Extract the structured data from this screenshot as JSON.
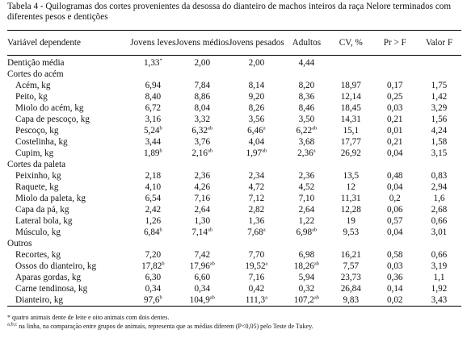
{
  "caption": "Tabela 4 - Quilogramas dos cortes provenientes da desossa do dianteiro de machos inteiros da raça Nelore terminados com diferentes pesos e dentições",
  "headers": [
    "Variável dependente",
    "Jovens leves",
    "Jovens médios",
    "Jovens pesados",
    "Adultos",
    "CV, %",
    "Pr > F",
    "Valor F"
  ],
  "rows": [
    {
      "label": "Dentição média",
      "indent": false,
      "cells": [
        [
          "1,33",
          "*"
        ],
        [
          "2,00",
          ""
        ],
        [
          "2,00",
          ""
        ],
        [
          "4,44",
          ""
        ],
        [
          "",
          ""
        ],
        [
          "",
          ""
        ],
        [
          "",
          ""
        ]
      ]
    },
    {
      "label": "Cortes do acém",
      "indent": false,
      "cells": []
    },
    {
      "label": "Acém, kg",
      "indent": true,
      "cells": [
        [
          "6,94",
          ""
        ],
        [
          "7,84",
          ""
        ],
        [
          "8,14",
          ""
        ],
        [
          "8,20",
          ""
        ],
        [
          "18,97",
          ""
        ],
        [
          "0,17",
          ""
        ],
        [
          "1,75",
          ""
        ]
      ]
    },
    {
      "label": "Peito, kg",
      "indent": true,
      "cells": [
        [
          "8,40",
          ""
        ],
        [
          "8,86",
          ""
        ],
        [
          "9,20",
          ""
        ],
        [
          "8,36",
          ""
        ],
        [
          "12,14",
          ""
        ],
        [
          "0,25",
          ""
        ],
        [
          "1,42",
          ""
        ]
      ]
    },
    {
      "label": "Miolo do acém, kg",
      "indent": true,
      "cells": [
        [
          "6,72",
          ""
        ],
        [
          "8,04",
          ""
        ],
        [
          "8,26",
          ""
        ],
        [
          "8,46",
          ""
        ],
        [
          "18,45",
          ""
        ],
        [
          "0,03",
          ""
        ],
        [
          "3,29",
          ""
        ]
      ]
    },
    {
      "label": "Capa de pescoço, kg",
      "indent": true,
      "cells": [
        [
          "3,16",
          ""
        ],
        [
          "3,32",
          ""
        ],
        [
          "3,56",
          ""
        ],
        [
          "3,50",
          ""
        ],
        [
          "14,31",
          ""
        ],
        [
          "0,21",
          ""
        ],
        [
          "1,56",
          ""
        ]
      ]
    },
    {
      "label": "Pescoço, kg",
      "indent": true,
      "cells": [
        [
          "5,24",
          "b"
        ],
        [
          "6,32",
          "ab"
        ],
        [
          "6,46",
          "a"
        ],
        [
          "6,22",
          "ab"
        ],
        [
          "15,1",
          ""
        ],
        [
          "0,01",
          ""
        ],
        [
          "4,24",
          ""
        ]
      ]
    },
    {
      "label": "Costelinha, kg",
      "indent": true,
      "cells": [
        [
          "3,44",
          ""
        ],
        [
          "3,76",
          ""
        ],
        [
          "4,04",
          ""
        ],
        [
          "3,68",
          ""
        ],
        [
          "17,77",
          ""
        ],
        [
          "0,21",
          ""
        ],
        [
          "1,58",
          ""
        ]
      ]
    },
    {
      "label": "Cupim, kg",
      "indent": true,
      "cells": [
        [
          "1,89",
          "b"
        ],
        [
          "2,16",
          "ab"
        ],
        [
          "1,97",
          "ab"
        ],
        [
          "2,36",
          "a"
        ],
        [
          "26,92",
          ""
        ],
        [
          "0,04",
          ""
        ],
        [
          "3,15",
          ""
        ]
      ]
    },
    {
      "label": "Cortes da paleta",
      "indent": false,
      "cells": []
    },
    {
      "label": "Peixinho, kg",
      "indent": true,
      "cells": [
        [
          "2,18",
          ""
        ],
        [
          "2,36",
          ""
        ],
        [
          "2,34",
          ""
        ],
        [
          "2,36",
          ""
        ],
        [
          "13,5",
          ""
        ],
        [
          "0,48",
          ""
        ],
        [
          "0,83",
          ""
        ]
      ]
    },
    {
      "label": "Raquete, kg",
      "indent": true,
      "cells": [
        [
          "4,10",
          ""
        ],
        [
          "4,26",
          ""
        ],
        [
          "4,72",
          ""
        ],
        [
          "4,52",
          ""
        ],
        [
          "12",
          ""
        ],
        [
          "0,04",
          ""
        ],
        [
          "2,94",
          ""
        ]
      ]
    },
    {
      "label": "Miolo da paleta, kg",
      "indent": true,
      "cells": [
        [
          "6,54",
          ""
        ],
        [
          "7,16",
          ""
        ],
        [
          "7,12",
          ""
        ],
        [
          "7,10",
          ""
        ],
        [
          "11,31",
          ""
        ],
        [
          "0,2",
          ""
        ],
        [
          "1,6",
          ""
        ]
      ]
    },
    {
      "label": "Capa da pá, kg",
      "indent": true,
      "cells": [
        [
          "2,42",
          ""
        ],
        [
          "2,64",
          ""
        ],
        [
          "2,82",
          ""
        ],
        [
          "2,64",
          ""
        ],
        [
          "12,28",
          ""
        ],
        [
          "0,06",
          ""
        ],
        [
          "2,68",
          ""
        ]
      ]
    },
    {
      "label": "Lateral bola, kg",
      "indent": true,
      "cells": [
        [
          "1,26",
          ""
        ],
        [
          "1,30",
          ""
        ],
        [
          "1,36",
          ""
        ],
        [
          "1,22",
          ""
        ],
        [
          "19",
          ""
        ],
        [
          "0,57",
          ""
        ],
        [
          "0,66",
          ""
        ]
      ]
    },
    {
      "label": "Músculo, kg",
      "indent": true,
      "cells": [
        [
          "6,84",
          "b"
        ],
        [
          "7,14",
          "ab"
        ],
        [
          "7,68",
          "a"
        ],
        [
          "6,98",
          "ab"
        ],
        [
          "9,53",
          ""
        ],
        [
          "0,04",
          ""
        ],
        [
          "3,01",
          ""
        ]
      ]
    },
    {
      "label": "Outros",
      "indent": false,
      "cells": []
    },
    {
      "label": "Recortes, kg",
      "indent": true,
      "cells": [
        [
          "7,20",
          ""
        ],
        [
          "7,42",
          ""
        ],
        [
          "7,70",
          ""
        ],
        [
          "6,98",
          ""
        ],
        [
          "16,21",
          ""
        ],
        [
          "0,58",
          ""
        ],
        [
          "0,66",
          ""
        ]
      ]
    },
    {
      "label": "Ossos do dianteiro, kg",
      "indent": true,
      "cells": [
        [
          "17,82",
          "b"
        ],
        [
          "17,96",
          "ab"
        ],
        [
          "19,52",
          "a"
        ],
        [
          "18,26",
          "ab"
        ],
        [
          "7,57",
          ""
        ],
        [
          "0,03",
          ""
        ],
        [
          "3,19",
          ""
        ]
      ]
    },
    {
      "label": "Aparas gordas, kg",
      "indent": true,
      "cells": [
        [
          "6,30",
          ""
        ],
        [
          "6,60",
          ""
        ],
        [
          "7,16",
          ""
        ],
        [
          "5,94",
          ""
        ],
        [
          "23,73",
          ""
        ],
        [
          "0,36",
          ""
        ],
        [
          "1,1",
          ""
        ]
      ]
    },
    {
      "label": "Carne tendinosa, kg",
      "indent": true,
      "cells": [
        [
          "0,34",
          ""
        ],
        [
          "0,34",
          ""
        ],
        [
          "0,42",
          ""
        ],
        [
          "0,32",
          ""
        ],
        [
          "26,84",
          ""
        ],
        [
          "0,14",
          ""
        ],
        [
          "1,92",
          ""
        ]
      ]
    },
    {
      "label": "Dianteiro, kg",
      "indent": true,
      "cells": [
        [
          "97,6",
          "b"
        ],
        [
          "104,9",
          "ab"
        ],
        [
          "111,3",
          "a"
        ],
        [
          "107,2",
          "ab"
        ],
        [
          "9,83",
          ""
        ],
        [
          "0,02",
          ""
        ],
        [
          "3,43",
          ""
        ]
      ]
    }
  ],
  "footnotes": [
    {
      "mark": "",
      "text": "* quatro animais dente de leite e oito animais com dois dentes."
    },
    {
      "mark": "a,b,c",
      "text": " na linha, na comparação entre grupos de animais, representa que as médias diferem (P<0,05) pelo Teste de Tukey."
    }
  ]
}
